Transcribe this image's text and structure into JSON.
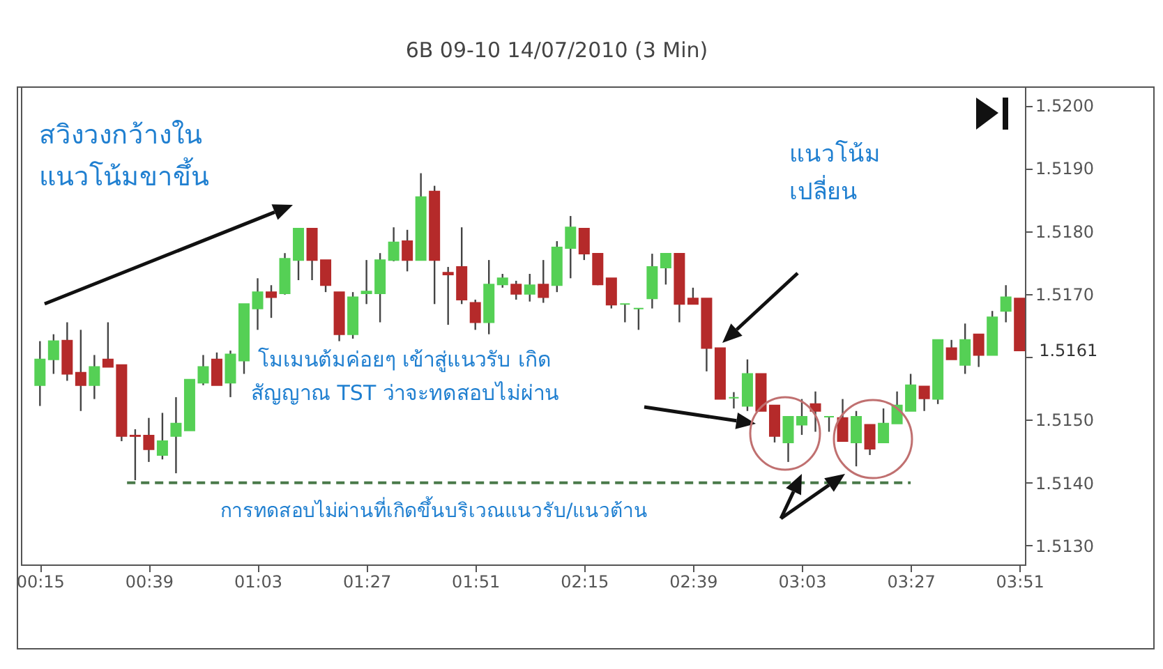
{
  "chart_data": {
    "type": "candlestick",
    "title": "6B 09-10  14/07/2010 (3 Min)",
    "x": [
      0.25,
      0.3,
      0.35,
      0.4,
      0.45,
      0.5,
      0.55,
      0.6,
      0.65,
      0.7,
      0.75,
      0.8,
      0.85,
      0.9,
      0.95,
      1,
      1.05,
      1.1,
      1.15,
      1.2,
      1.25,
      1.3,
      1.35,
      1.4,
      1.45,
      1.5,
      1.55,
      1.6,
      1.65,
      1.7,
      1.75,
      1.8,
      1.85,
      1.9,
      1.95,
      2,
      2.05,
      2.1,
      2.15,
      2.2,
      2.25,
      2.3,
      2.35,
      2.4,
      2.45,
      2.5,
      2.55,
      2.6,
      2.65,
      2.7,
      2.75,
      2.8,
      2.85,
      2.9,
      2.95,
      3,
      3.05,
      3.1,
      3.15,
      3.2,
      3.25,
      3.3,
      3.35,
      3.4,
      3.45,
      3.5,
      3.55,
      3.6,
      3.65,
      3.7,
      3.75,
      3.8,
      3.85
    ],
    "ohlc": [
      [
        1.51555,
        1.51625,
        1.51522,
        1.51596
      ],
      [
        1.51596,
        1.51636,
        1.51573,
        1.51625
      ],
      [
        1.51626,
        1.51655,
        1.51562,
        1.51573
      ],
      [
        1.51575,
        1.51643,
        1.51514,
        1.51555
      ],
      [
        1.51555,
        1.51603,
        1.51533,
        1.51584
      ],
      [
        1.51596,
        1.51655,
        1.51584,
        1.51584
      ],
      [
        1.51587,
        1.51587,
        1.51466,
        1.51474
      ],
      [
        1.51475,
        1.51485,
        1.51404,
        1.51474
      ],
      [
        1.51475,
        1.51503,
        1.51433,
        1.51453
      ],
      [
        1.51444,
        1.51511,
        1.51437,
        1.51466
      ],
      [
        1.51474,
        1.51536,
        1.51415,
        1.51494
      ],
      [
        1.51483,
        1.51564,
        1.51483,
        1.51564
      ],
      [
        1.51559,
        1.51603,
        1.51555,
        1.51584
      ],
      [
        1.51596,
        1.51607,
        1.51555,
        1.51555
      ],
      [
        1.51559,
        1.5161,
        1.51536,
        1.51604
      ],
      [
        1.51594,
        1.51684,
        1.51573,
        1.51684
      ],
      [
        1.51677,
        1.51725,
        1.51643,
        1.51703
      ],
      [
        1.51703,
        1.51714,
        1.51662,
        1.51695
      ],
      [
        1.51701,
        1.51765,
        1.51699,
        1.51756
      ],
      [
        1.51754,
        1.51804,
        1.51722,
        1.51804
      ],
      [
        1.51804,
        1.51804,
        1.51722,
        1.51754
      ],
      [
        1.51754,
        1.51754,
        1.51703,
        1.51714
      ],
      [
        1.51703,
        1.51703,
        1.51625,
        1.51636
      ],
      [
        1.51636,
        1.51703,
        1.51629,
        1.51695
      ],
      [
        1.51701,
        1.51754,
        1.51684,
        1.51704
      ],
      [
        1.51701,
        1.51765,
        1.51655,
        1.51754
      ],
      [
        1.51754,
        1.51806,
        1.51752,
        1.51782
      ],
      [
        1.51784,
        1.51802,
        1.51736,
        1.51754
      ],
      [
        1.51754,
        1.51892,
        1.51754,
        1.51854
      ],
      [
        1.51863,
        1.51872,
        1.51684,
        1.51754
      ],
      [
        1.51734,
        1.51743,
        1.51651,
        1.51731
      ],
      [
        1.51743,
        1.51806,
        1.51684,
        1.51691
      ],
      [
        1.51686,
        1.51691,
        1.51643,
        1.51655
      ],
      [
        1.51655,
        1.51754,
        1.51636,
        1.51715
      ],
      [
        1.51715,
        1.51732,
        1.5171,
        1.51725
      ],
      [
        1.51715,
        1.51721,
        1.51691,
        1.517
      ],
      [
        1.517,
        1.51732,
        1.51688,
        1.51714
      ],
      [
        1.51715,
        1.51754,
        1.51686,
        1.51695
      ],
      [
        1.51714,
        1.51784,
        1.51703,
        1.51774
      ],
      [
        1.51773,
        1.51824,
        1.51725,
        1.51806
      ],
      [
        1.51804,
        1.51804,
        1.51754,
        1.51764
      ],
      [
        1.51764,
        1.51764,
        1.51714,
        1.51715
      ],
      [
        1.51725,
        1.51725,
        1.51677,
        1.51683
      ],
      [
        1.51684,
        1.51684,
        1.51655,
        1.51684
      ],
      [
        1.51677,
        1.51677,
        1.51643,
        1.51677
      ],
      [
        1.51693,
        1.51764,
        1.51677,
        1.51743
      ],
      [
        1.51742,
        1.51764,
        1.51715,
        1.51764
      ],
      [
        1.51764,
        1.51764,
        1.51655,
        1.51684
      ],
      [
        1.51693,
        1.5171,
        1.51684,
        1.51684
      ],
      [
        1.51693,
        1.51693,
        1.51577,
        1.51614
      ],
      [
        1.51614,
        1.51614,
        1.51533,
        1.51533
      ],
      [
        1.51535,
        1.51544,
        1.51518,
        1.51535
      ],
      [
        1.51522,
        1.51596,
        1.51514,
        1.51573
      ],
      [
        1.51573,
        1.51573,
        1.51514,
        1.51514
      ],
      [
        1.51523,
        1.51523,
        1.51464,
        1.51474
      ],
      [
        1.51464,
        1.51505,
        1.51433,
        1.51505
      ],
      [
        1.51492,
        1.51533,
        1.51476,
        1.51505
      ],
      [
        1.51525,
        1.51545,
        1.51481,
        1.51514
      ],
      [
        1.51505,
        1.51505,
        1.51481,
        1.51505
      ],
      [
        1.51503,
        1.51533,
        1.51466,
        1.51466
      ],
      [
        1.51464,
        1.51514,
        1.51426,
        1.51505
      ],
      [
        1.51492,
        1.51492,
        1.51444,
        1.51454
      ],
      [
        1.51464,
        1.51518,
        1.51464,
        1.51494
      ],
      [
        1.51494,
        1.51545,
        1.51494,
        1.51523
      ],
      [
        1.51514,
        1.51573,
        1.51514,
        1.51555
      ],
      [
        1.51553,
        1.51553,
        1.51514,
        1.51534
      ],
      [
        1.51533,
        1.51627,
        1.51525,
        1.51627
      ],
      [
        1.51614,
        1.51627,
        1.51596,
        1.51596
      ],
      [
        1.51587,
        1.51653,
        1.51573,
        1.51627
      ],
      [
        1.51636,
        1.51636,
        1.51584,
        1.51603
      ],
      [
        1.51603,
        1.51673,
        1.51603,
        1.51663
      ],
      [
        1.51673,
        1.51714,
        1.51655,
        1.51695
      ],
      [
        1.51693,
        1.51693,
        1.5161,
        1.5161
      ]
    ],
    "colors": [
      "#55d055",
      "#55d055",
      "#b52a2a",
      "#b52a2a",
      "#55d055",
      "#b52a2a",
      "#b52a2a",
      "#b52a2a",
      "#b52a2a",
      "#55d055",
      "#55d055",
      "#55d055",
      "#55d055",
      "#b52a2a",
      "#55d055",
      "#55d055",
      "#55d055",
      "#b52a2a",
      "#55d055",
      "#55d055",
      "#b52a2a",
      "#b52a2a",
      "#b52a2a",
      "#55d055",
      "#55d055",
      "#55d055",
      "#55d055",
      "#b52a2a",
      "#55d055",
      "#b52a2a",
      "#b52a2a",
      "#b52a2a",
      "#b52a2a",
      "#55d055",
      "#55d055",
      "#b52a2a",
      "#55d055",
      "#b52a2a",
      "#55d055",
      "#55d055",
      "#b52a2a",
      "#b52a2a",
      "#b52a2a",
      "#55d055",
      "#55d055",
      "#55d055",
      "#55d055",
      "#b52a2a",
      "#b52a2a",
      "#b52a2a",
      "#b52a2a",
      "#55d055",
      "#55d055",
      "#b52a2a",
      "#b52a2a",
      "#55d055",
      "#55d055",
      "#b52a2a",
      "#55d055",
      "#b52a2a",
      "#55d055",
      "#b52a2a",
      "#55d055",
      "#55d055",
      "#55d055",
      "#b52a2a",
      "#55d055",
      "#b52a2a",
      "#55d055",
      "#b52a2a",
      "#55d055",
      "#55d055",
      "#b52a2a"
    ],
    "series": [
      {
        "type": "line",
        "x": [
          0.57,
          3.45
        ],
        "values": [
          1.514,
          1.514
        ],
        "color": "#4a7a4a",
        "line_style": "dashed"
      }
    ],
    "xlim": [
      0.18,
      3.87
    ],
    "xticks": [
      {
        "value": 0.25,
        "label": "00:15"
      },
      {
        "value": 0.65,
        "label": "00:39"
      },
      {
        "value": 1.05,
        "label": "01:03"
      },
      {
        "value": 1.45,
        "label": "01:27"
      },
      {
        "value": 1.85,
        "label": "01:51"
      },
      {
        "value": 2.25,
        "label": "02:15"
      },
      {
        "value": 2.65,
        "label": "02:39"
      },
      {
        "value": 3.05,
        "label": "03:03"
      },
      {
        "value": 3.45,
        "label": "03:27"
      },
      {
        "value": 3.85,
        "label": "03:51"
      }
    ],
    "ylim": [
      1.5127,
      1.5203
    ],
    "yticks": [
      {
        "value": 1.513,
        "label": "1.5130"
      },
      {
        "value": 1.514,
        "label": "1.5140"
      },
      {
        "value": 1.515,
        "label": "1.5150"
      },
      {
        "value": 1.516,
        "label": null
      },
      {
        "value": 1.517,
        "label": "1.5170"
      },
      {
        "value": 1.518,
        "label": "1.5180"
      },
      {
        "value": 1.519,
        "label": "1.5190"
      },
      {
        "value": 1.52,
        "label": "1.5200"
      }
    ],
    "annotations": [
      "สวิงวงกว้างใน\nแนวโน้มขาขึ้น",
      "แนวโน้ม\nเปลี่ยน",
      "โมเมนต้มค่อยๆ เข้าสู่แนวรับ เกิด\nสัญญาณ TST ว่าจะทดสอบไม่ผ่าน",
      "การทดสอบไม่ผ่านที่เกิดขึ้นบริเวณแนวรับ/แนวต้าน",
      {
        "text": "1.5161",
        "x": 3.85,
        "y": 1.5161
      }
    ],
    "grid": false
  }
}
